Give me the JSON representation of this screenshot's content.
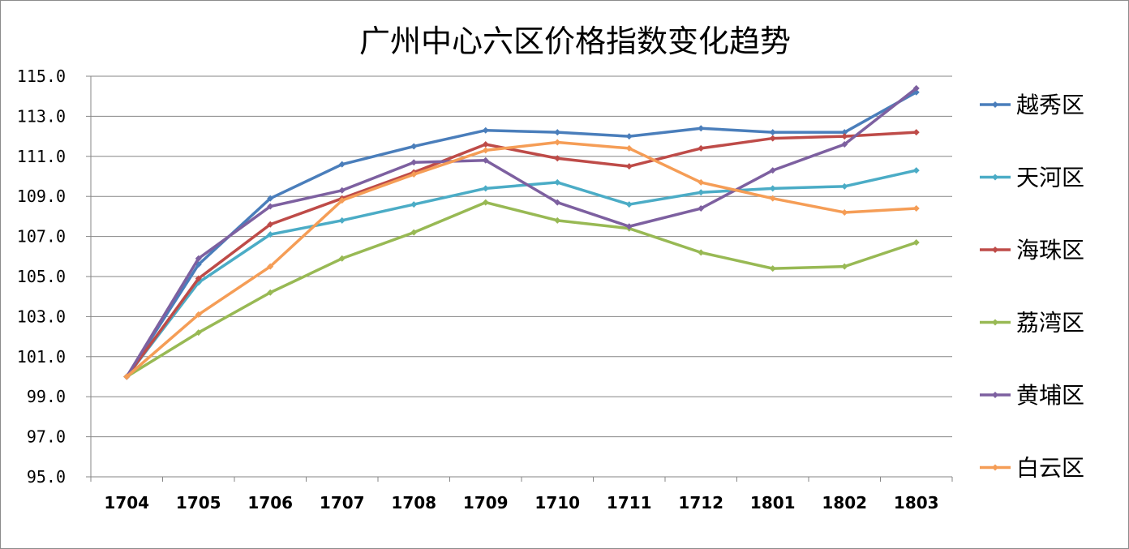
{
  "chart_data": {
    "type": "line",
    "title": "广州中心六区价格指数变化趋势",
    "xlabel": "",
    "ylabel": "",
    "categories": [
      "1704",
      "1705",
      "1706",
      "1707",
      "1708",
      "1709",
      "1710",
      "1711",
      "1712",
      "1801",
      "1802",
      "1803"
    ],
    "ylim": [
      95.0,
      115.0
    ],
    "yticks": [
      "95.0",
      "97.0",
      "99.0",
      "101.0",
      "103.0",
      "105.0",
      "107.0",
      "109.0",
      "111.0",
      "113.0",
      "115.0"
    ],
    "grid": "horizontal",
    "legend_position": "right",
    "series": [
      {
        "name": "越秀区",
        "color": "#4a7ebb",
        "values": [
          100.0,
          105.6,
          108.9,
          110.6,
          111.5,
          112.3,
          112.2,
          112.0,
          112.4,
          112.2,
          112.2,
          114.2
        ]
      },
      {
        "name": "天河区",
        "color": "#4bacc6",
        "values": [
          100.0,
          104.7,
          107.1,
          107.8,
          108.6,
          109.4,
          109.7,
          108.6,
          109.2,
          109.4,
          109.5,
          110.3
        ]
      },
      {
        "name": "海珠区",
        "color": "#be4b48",
        "values": [
          100.0,
          104.9,
          107.6,
          108.9,
          110.2,
          111.6,
          110.9,
          110.5,
          111.4,
          111.9,
          112.0,
          112.2
        ]
      },
      {
        "name": "荔湾区",
        "color": "#98b954",
        "values": [
          100.0,
          102.2,
          104.2,
          105.9,
          107.2,
          108.7,
          107.8,
          107.4,
          106.2,
          105.4,
          105.5,
          106.7
        ]
      },
      {
        "name": "黄埔区",
        "color": "#7d60a0",
        "values": [
          100.0,
          105.9,
          108.5,
          109.3,
          110.7,
          110.8,
          108.7,
          107.5,
          108.4,
          110.3,
          111.6,
          114.4
        ]
      },
      {
        "name": "白云区",
        "color": "#f59d56",
        "values": [
          100.0,
          103.1,
          105.5,
          108.8,
          110.1,
          111.3,
          111.7,
          111.4,
          109.7,
          108.9,
          108.2,
          108.4
        ]
      }
    ]
  }
}
